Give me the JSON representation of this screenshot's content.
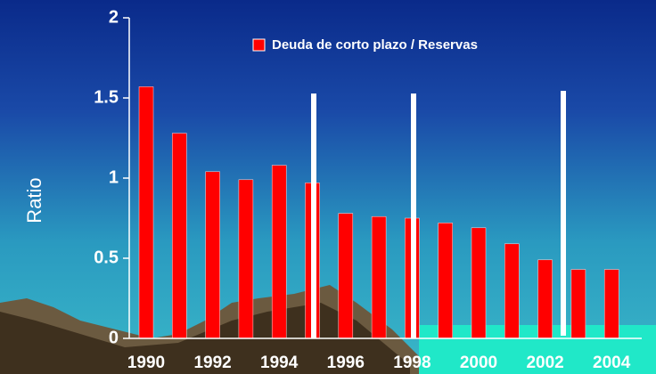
{
  "chart_data": {
    "type": "bar",
    "y_label": "Ratio",
    "legend": "Deuda de corto plazo / Reservas",
    "color": "#ff0000",
    "categories": [
      "1990",
      null,
      "1992",
      null,
      "1994",
      null,
      "1996",
      null,
      "1998",
      null,
      "2000",
      null,
      "2002",
      null,
      "2004"
    ],
    "values": [
      1.57,
      1.28,
      1.04,
      0.99,
      1.08,
      0.97,
      0.78,
      0.76,
      0.75,
      0.72,
      0.69,
      0.59,
      0.49,
      0.43,
      0.43
    ],
    "ylim": [
      0,
      2
    ],
    "yticks": [
      0,
      0.5,
      1,
      1.5,
      2
    ]
  }
}
